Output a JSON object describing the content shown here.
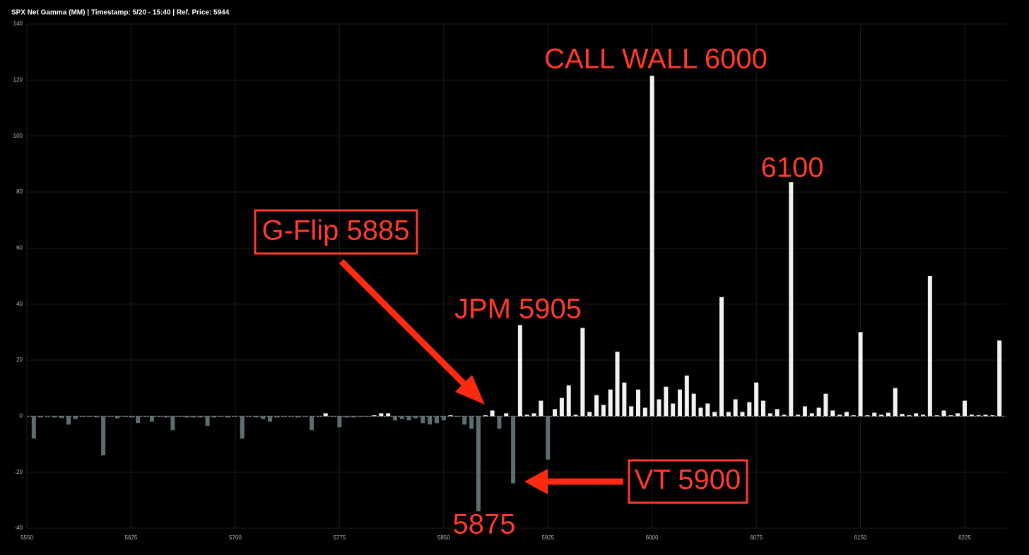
{
  "chart_data": {
    "type": "bar",
    "title": "SPX Net Gamma (MM) | Timestamp: 5/20 - 15:40  | Ref. Price: 5944",
    "x": [
      5555,
      5560,
      5565,
      5570,
      5575,
      5580,
      5585,
      5590,
      5595,
      5600,
      5605,
      5610,
      5615,
      5620,
      5625,
      5630,
      5635,
      5640,
      5645,
      5650,
      5655,
      5660,
      5665,
      5670,
      5675,
      5680,
      5685,
      5690,
      5695,
      5700,
      5705,
      5710,
      5715,
      5720,
      5725,
      5730,
      5735,
      5740,
      5745,
      5750,
      5755,
      5760,
      5765,
      5770,
      5775,
      5780,
      5785,
      5790,
      5795,
      5800,
      5805,
      5810,
      5815,
      5820,
      5825,
      5830,
      5835,
      5840,
      5845,
      5850,
      5855,
      5860,
      5865,
      5870,
      5875,
      5880,
      5885,
      5890,
      5895,
      5900,
      5905,
      5910,
      5915,
      5920,
      5925,
      5930,
      5935,
      5940,
      5945,
      5950,
      5955,
      5960,
      5965,
      5970,
      5975,
      5980,
      5985,
      5990,
      5995,
      6000,
      6005,
      6010,
      6015,
      6020,
      6025,
      6030,
      6035,
      6040,
      6045,
      6050,
      6055,
      6060,
      6065,
      6070,
      6075,
      6080,
      6085,
      6090,
      6095,
      6100,
      6105,
      6110,
      6115,
      6120,
      6125,
      6130,
      6135,
      6140,
      6145,
      6150,
      6155,
      6160,
      6165,
      6170,
      6175,
      6180,
      6185,
      6190,
      6195,
      6200,
      6205,
      6210,
      6215,
      6220,
      6225,
      6230,
      6235,
      6240,
      6245,
      6250
    ],
    "values": [
      -8,
      -0.5,
      -0.3,
      -0.5,
      -0.7,
      -3,
      -1,
      -0.3,
      -0.3,
      -0.5,
      -14,
      -0.3,
      -0.8,
      -0.3,
      -0.5,
      -2.5,
      -0.3,
      -2,
      -0.3,
      -0.5,
      -5,
      -0.3,
      -0.5,
      -0.5,
      -0.5,
      -3.5,
      -0.5,
      -0.3,
      -0.5,
      -0.3,
      -8,
      -0.3,
      -0.5,
      -1,
      -2,
      -0.5,
      -0.3,
      -0.3,
      -0.5,
      -0.3,
      -5,
      -0.3,
      1,
      -0.3,
      -4,
      -0.5,
      -0.5,
      -0.3,
      -0.3,
      0.3,
      1,
      1,
      -1.5,
      -1,
      -1.5,
      -0.8,
      -2.5,
      -3,
      -2.5,
      -1.5,
      0.3,
      -0.3,
      -3,
      -4.5,
      -34,
      0.3,
      2,
      -4.5,
      1,
      -24,
      32.5,
      0.5,
      1,
      5.5,
      -15.5,
      2.5,
      6.5,
      11,
      0.5,
      31.5,
      1.5,
      7.5,
      4,
      9.5,
      23,
      12,
      3.5,
      9.5,
      3,
      121.5,
      6,
      10.5,
      4.5,
      9.5,
      14.5,
      8,
      3,
      4.5,
      1.5,
      42.5,
      1.5,
      6,
      1.5,
      5,
      12,
      5.5,
      1,
      2.5,
      0.5,
      83.5,
      0.5,
      3.5,
      1,
      3,
      8,
      2,
      0.5,
      1.5,
      0.3,
      30,
      0.3,
      1.2,
      0.5,
      1.2,
      10,
      0.8,
      0.3,
      1,
      0.5,
      50,
      0.3,
      2,
      0.3,
      1,
      5.5,
      0.5,
      0.3,
      0.5,
      0.3,
      27
    ],
    "positive_color": "#f2f2f2",
    "negative_color": "#5b6e70",
    "xlim": [
      5550,
      6255
    ],
    "xticks": [
      5550,
      5625,
      5700,
      5775,
      5850,
      5925,
      6000,
      6075,
      6150,
      6225
    ],
    "ylim": [
      -40,
      140
    ],
    "yticks": [
      -40,
      -20,
      0,
      20,
      40,
      60,
      80,
      100,
      120,
      140
    ],
    "grid": true,
    "annotations": [
      "CALL WALL 6000",
      "6100",
      "G-Flip 5885",
      "JPM 5905",
      "VT 5900",
      "5875"
    ]
  }
}
